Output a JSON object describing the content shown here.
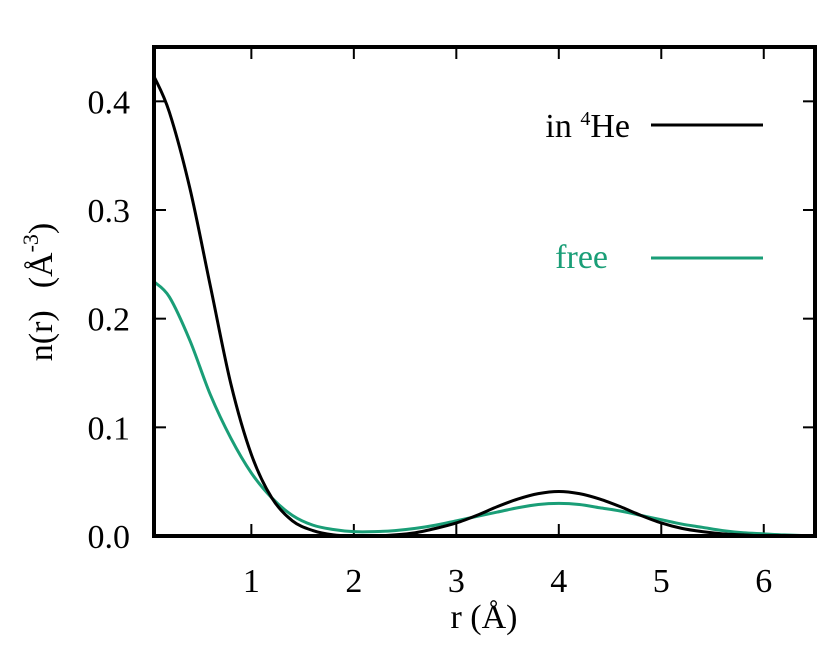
{
  "chart_data": {
    "type": "line",
    "xlabel": "r (Å)",
    "ylabel": "n(r)   (Å-3)",
    "xlim": [
      0.05,
      6.5
    ],
    "ylim": [
      0.0,
      0.45
    ],
    "x_ticks": [
      1,
      2,
      3,
      4,
      5,
      6
    ],
    "x_tick_labels": [
      "1",
      "2",
      "3",
      "4",
      "5",
      "6"
    ],
    "y_ticks": [
      0.0,
      0.1,
      0.2,
      0.3,
      0.4
    ],
    "y_tick_labels": [
      "0.0",
      "0.1",
      "0.2",
      "0.3",
      "0.4"
    ],
    "grid": false,
    "legend_position": "top-right",
    "series": [
      {
        "name": "in 4He",
        "color": "#000000",
        "x": [
          0.05,
          0.2,
          0.4,
          0.6,
          0.8,
          1.0,
          1.2,
          1.4,
          1.6,
          1.8,
          2.0,
          2.2,
          2.4,
          2.6,
          2.8,
          3.0,
          3.2,
          3.4,
          3.6,
          3.8,
          4.0,
          4.2,
          4.4,
          4.6,
          4.8,
          5.0,
          5.2,
          5.4,
          5.6,
          5.8,
          6.0,
          6.2,
          6.5
        ],
        "y": [
          0.423,
          0.39,
          0.32,
          0.23,
          0.14,
          0.075,
          0.035,
          0.014,
          0.005,
          0.001,
          0.0,
          0.0,
          0.001,
          0.003,
          0.007,
          0.012,
          0.019,
          0.027,
          0.034,
          0.039,
          0.041,
          0.039,
          0.034,
          0.027,
          0.019,
          0.012,
          0.007,
          0.004,
          0.002,
          0.001,
          0.0,
          0.0,
          0.0
        ]
      },
      {
        "name": "free",
        "color": "#1a9e77",
        "x": [
          0.05,
          0.2,
          0.4,
          0.6,
          0.8,
          1.0,
          1.2,
          1.4,
          1.6,
          1.8,
          2.0,
          2.2,
          2.4,
          2.6,
          2.8,
          3.0,
          3.2,
          3.4,
          3.6,
          3.8,
          4.0,
          4.2,
          4.4,
          4.6,
          4.8,
          5.0,
          5.2,
          5.4,
          5.6,
          5.8,
          6.0,
          6.2,
          6.5
        ],
        "y": [
          0.234,
          0.22,
          0.18,
          0.13,
          0.09,
          0.058,
          0.035,
          0.019,
          0.01,
          0.006,
          0.004,
          0.004,
          0.005,
          0.007,
          0.01,
          0.014,
          0.018,
          0.022,
          0.026,
          0.029,
          0.03,
          0.029,
          0.026,
          0.023,
          0.019,
          0.015,
          0.011,
          0.008,
          0.005,
          0.003,
          0.002,
          0.001,
          0.0
        ]
      }
    ]
  },
  "legend": {
    "in_prefix": "in ",
    "in_superscript": "4",
    "in_suffix": "He",
    "free_label": "free"
  },
  "axis": {
    "y_title_main": "n(r)",
    "y_title_unit_open": "(Å",
    "y_title_exp": "-3",
    "y_title_unit_close": ")",
    "x_title": "r (Å)"
  }
}
